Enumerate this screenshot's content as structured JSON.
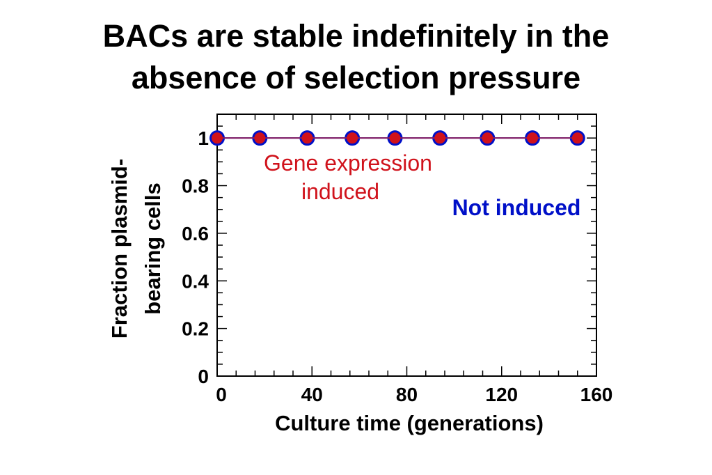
{
  "chart_data": {
    "type": "line",
    "title_lines": [
      "BACs are stable indefinitely in the",
      "absence of selection pressure"
    ],
    "xlabel": "Culture time (generations)",
    "ylabel_lines": [
      "Fraction plasmid-",
      "bearing cells"
    ],
    "xlim": [
      0,
      160
    ],
    "ylim": [
      0,
      1.1
    ],
    "xticks": [
      0,
      40,
      80,
      120,
      160
    ],
    "yticks": [
      0,
      0.2,
      0.4,
      0.6,
      0.8,
      1
    ],
    "ytick_labels": [
      "0",
      "0.2",
      "0.4",
      "0.6",
      "0.8",
      "1"
    ],
    "series": [
      {
        "name": "Not induced",
        "color": "#0010c8",
        "x": [
          0,
          18,
          38,
          57,
          75,
          94,
          114,
          133,
          152
        ],
        "values": [
          1,
          1,
          1,
          1,
          1,
          1,
          1,
          1,
          1
        ]
      },
      {
        "name": "Gene expression induced",
        "color": "#d0121b",
        "x": [
          0,
          18,
          38,
          57,
          75,
          94,
          114,
          133,
          152
        ],
        "values": [
          1,
          1,
          1,
          1,
          1,
          1,
          1,
          1,
          1
        ]
      }
    ],
    "annotations": [
      {
        "lines": [
          "Gene expression",
          "induced"
        ],
        "color": "#d0121b"
      },
      {
        "lines": [
          "Not induced"
        ],
        "color": "#0010c8"
      }
    ]
  }
}
